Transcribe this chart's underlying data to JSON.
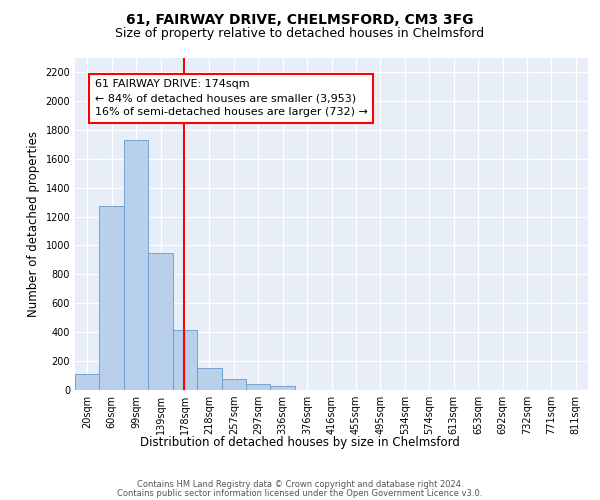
{
  "title_line1": "61, FAIRWAY DRIVE, CHELMSFORD, CM3 3FG",
  "title_line2": "Size of property relative to detached houses in Chelmsford",
  "xlabel": "Distribution of detached houses by size in Chelmsford",
  "ylabel": "Number of detached properties",
  "footer_line1": "Contains HM Land Registry data © Crown copyright and database right 2024.",
  "footer_line2": "Contains public sector information licensed under the Open Government Licence v3.0.",
  "annotation_line1": "61 FAIRWAY DRIVE: 174sqm",
  "annotation_line2": "← 84% of detached houses are smaller (3,953)",
  "annotation_line3": "16% of semi-detached houses are larger (732) →",
  "bar_labels": [
    "20sqm",
    "60sqm",
    "99sqm",
    "139sqm",
    "178sqm",
    "218sqm",
    "257sqm",
    "297sqm",
    "336sqm",
    "376sqm",
    "416sqm",
    "455sqm",
    "495sqm",
    "534sqm",
    "574sqm",
    "613sqm",
    "653sqm",
    "692sqm",
    "732sqm",
    "771sqm",
    "811sqm"
  ],
  "bar_values": [
    110,
    1270,
    1730,
    950,
    415,
    150,
    75,
    42,
    25,
    0,
    0,
    0,
    0,
    0,
    0,
    0,
    0,
    0,
    0,
    0,
    0
  ],
  "bar_color": "#b8d0ea",
  "bar_edge_color": "#6699cc",
  "background_color": "#e8eef8",
  "ylim": [
    0,
    2300
  ],
  "yticks": [
    0,
    200,
    400,
    600,
    800,
    1000,
    1200,
    1400,
    1600,
    1800,
    2000,
    2200
  ],
  "grid_color": "#ffffff",
  "title_fontsize": 10,
  "subtitle_fontsize": 9,
  "axis_label_fontsize": 8.5,
  "tick_fontsize": 7,
  "annotation_fontsize": 8,
  "footer_fontsize": 6,
  "vline_x": 3.95
}
